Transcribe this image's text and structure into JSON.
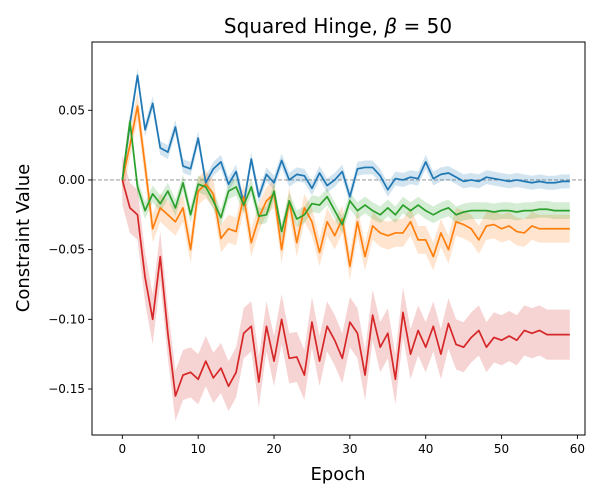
{
  "chart_data": {
    "type": "line",
    "title": "Squared Hinge, β = 50",
    "title_prefix": "Squared Hinge, ",
    "title_beta": "β",
    "title_suffix": " = 50",
    "xlabel": "Epoch",
    "ylabel": "Constraint Value",
    "xlim": [
      -4,
      61
    ],
    "ylim": [
      -0.183,
      0.099
    ],
    "xticks": [
      0,
      10,
      20,
      30,
      40,
      50,
      60
    ],
    "xtick_labels": [
      "0",
      "10",
      "20",
      "30",
      "40",
      "50",
      "60"
    ],
    "yticks": [
      0.05,
      0.0,
      -0.05,
      -0.1,
      -0.15
    ],
    "ytick_labels": [
      "0.05",
      "0.00",
      "−0.05",
      "−0.10",
      "−0.15"
    ],
    "reference_line": {
      "y": 0.0,
      "style": "dashed",
      "color": "#888888"
    },
    "series": [
      {
        "name": "blue",
        "color": "#1f77b4",
        "band_width": 0.005,
        "values": [
          0.0,
          0.04,
          0.075,
          0.036,
          0.055,
          0.023,
          0.02,
          0.038,
          0.01,
          0.008,
          0.03,
          -0.002,
          0.008,
          0.013,
          -0.003,
          0.006,
          -0.017,
          0.015,
          -0.012,
          0.004,
          -0.002,
          0.014,
          0.0,
          0.004,
          0.003,
          -0.006,
          0.005,
          -0.004,
          0.0,
          0.006,
          -0.012,
          0.008,
          0.009,
          0.009,
          0.003,
          -0.007,
          0.001,
          0.0,
          0.002,
          0.001,
          0.013,
          0.001,
          0.004,
          0.005,
          0.002,
          -0.001,
          0.0,
          -0.001,
          0.002,
          0.001,
          0.0,
          -0.001,
          0.0,
          -0.001,
          -0.002,
          -0.001,
          -0.002,
          -0.002,
          -0.001,
          -0.001
        ]
      },
      {
        "name": "orange",
        "color": "#ff7f0e",
        "band_width": 0.01,
        "values": [
          0.0,
          0.025,
          0.053,
          0.01,
          -0.035,
          -0.02,
          -0.025,
          -0.03,
          -0.02,
          -0.05,
          -0.008,
          -0.003,
          -0.01,
          -0.042,
          -0.035,
          -0.037,
          -0.012,
          -0.045,
          -0.027,
          -0.015,
          -0.01,
          -0.05,
          -0.015,
          -0.045,
          -0.02,
          -0.03,
          -0.052,
          -0.03,
          -0.04,
          -0.028,
          -0.062,
          -0.03,
          -0.055,
          -0.033,
          -0.038,
          -0.04,
          -0.038,
          -0.038,
          -0.03,
          -0.043,
          -0.043,
          -0.055,
          -0.038,
          -0.05,
          -0.03,
          -0.032,
          -0.035,
          -0.043,
          -0.033,
          -0.032,
          -0.035,
          -0.033,
          -0.037,
          -0.038,
          -0.033,
          -0.035,
          -0.035,
          -0.035,
          -0.035,
          -0.035
        ]
      },
      {
        "name": "green",
        "color": "#2ca02c",
        "band_width": 0.006,
        "values": [
          0.0,
          0.042,
          -0.005,
          -0.022,
          -0.01,
          -0.017,
          -0.008,
          -0.02,
          -0.002,
          -0.025,
          -0.003,
          -0.005,
          -0.015,
          -0.027,
          -0.008,
          -0.005,
          -0.018,
          -0.005,
          -0.026,
          -0.025,
          -0.008,
          -0.037,
          -0.015,
          -0.028,
          -0.025,
          -0.017,
          -0.018,
          -0.012,
          -0.022,
          -0.032,
          -0.015,
          -0.022,
          -0.018,
          -0.022,
          -0.025,
          -0.02,
          -0.025,
          -0.018,
          -0.022,
          -0.018,
          -0.022,
          -0.025,
          -0.022,
          -0.02,
          -0.025,
          -0.023,
          -0.022,
          -0.022,
          -0.022,
          -0.023,
          -0.022,
          -0.022,
          -0.023,
          -0.022,
          -0.022,
          -0.021,
          -0.021,
          -0.022,
          -0.022,
          -0.022
        ]
      },
      {
        "name": "red",
        "color": "#d62728",
        "band_width": 0.018,
        "values": [
          0.0,
          -0.02,
          -0.025,
          -0.07,
          -0.1,
          -0.055,
          -0.11,
          -0.155,
          -0.14,
          -0.138,
          -0.143,
          -0.13,
          -0.142,
          -0.135,
          -0.148,
          -0.138,
          -0.11,
          -0.105,
          -0.145,
          -0.105,
          -0.13,
          -0.1,
          -0.128,
          -0.127,
          -0.14,
          -0.102,
          -0.13,
          -0.105,
          -0.115,
          -0.128,
          -0.102,
          -0.11,
          -0.14,
          -0.097,
          -0.12,
          -0.11,
          -0.143,
          -0.095,
          -0.125,
          -0.108,
          -0.12,
          -0.105,
          -0.125,
          -0.103,
          -0.118,
          -0.12,
          -0.113,
          -0.108,
          -0.12,
          -0.113,
          -0.115,
          -0.112,
          -0.115,
          -0.108,
          -0.11,
          -0.108,
          -0.111,
          -0.111,
          -0.111,
          -0.111
        ]
      }
    ]
  }
}
